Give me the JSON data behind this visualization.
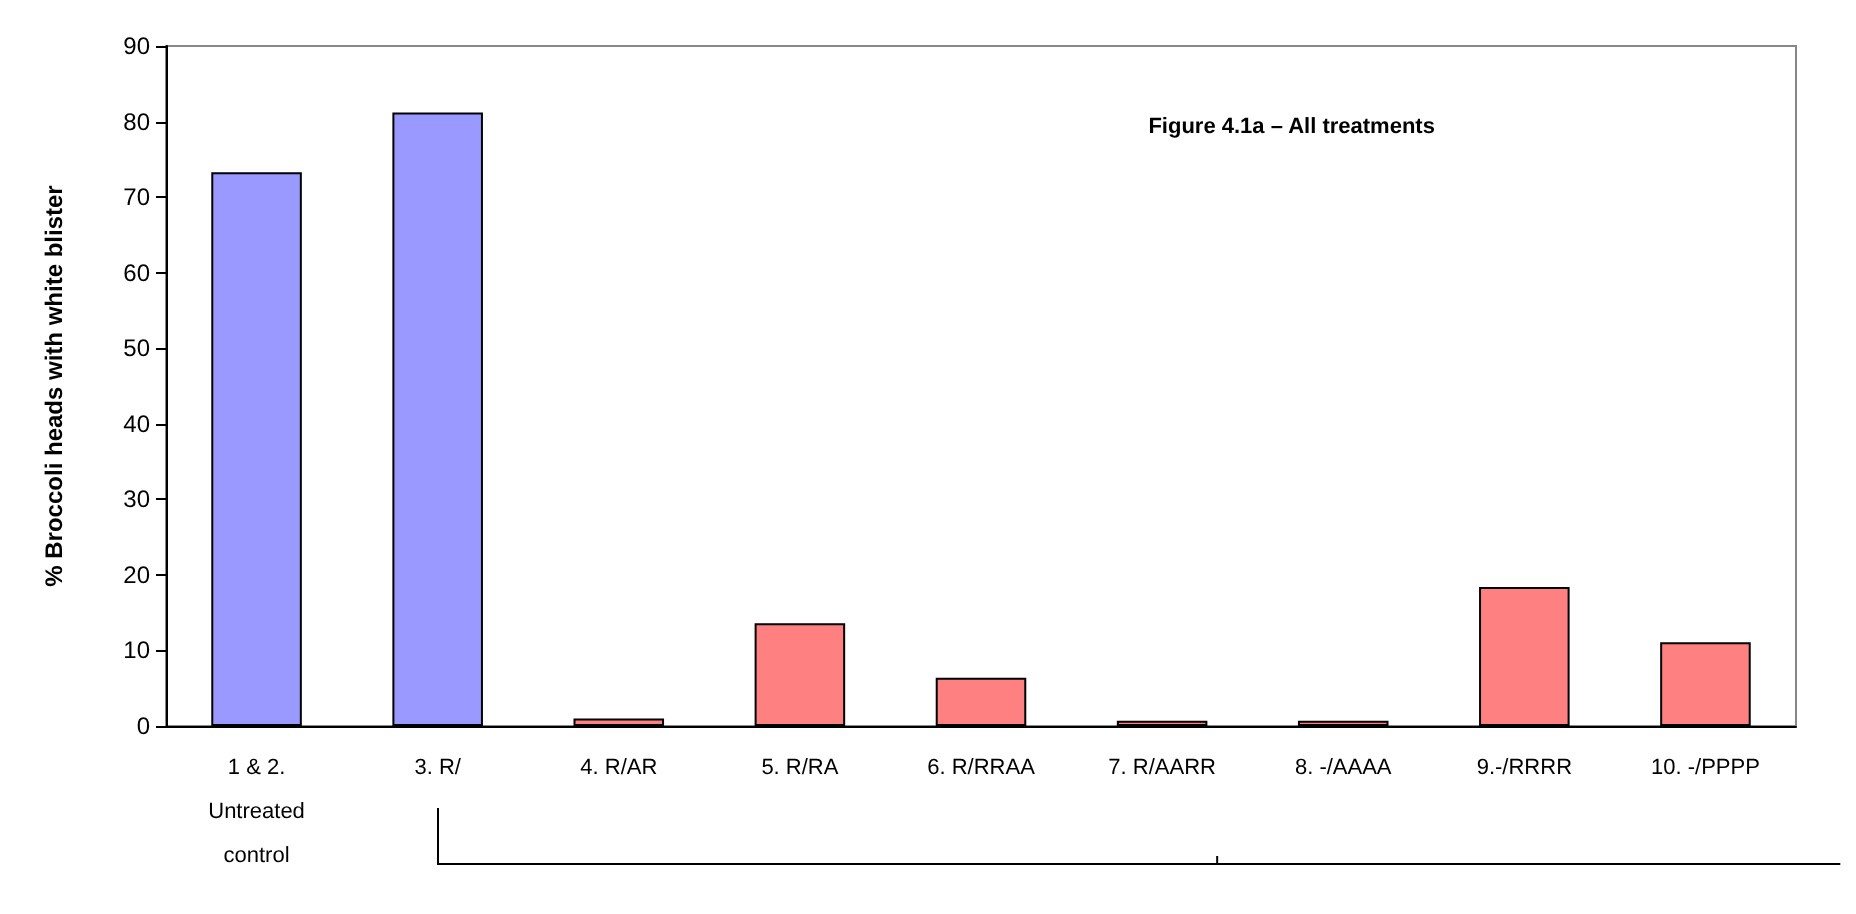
{
  "chart_data": {
    "type": "bar",
    "title": "Figure 4.1a – All treatments",
    "ylabel": "% Broccoli heads with white blister",
    "categories": [
      "1 & 2.\nUntreated\ncontrol",
      "3. R/",
      "4. R/AR",
      "5. R/RA",
      "6. R/RRAA",
      "7. R/AARR",
      "8. -/AAAA",
      "9.-/RRRR",
      "10. -/PPPP"
    ],
    "values": [
      73.3,
      81.2,
      1.0,
      13.6,
      6.4,
      0.7,
      0.7,
      18.4,
      11.1
    ],
    "colors": [
      "#9999ff",
      "#9999ff",
      "#ff8080",
      "#ff8080",
      "#ff8080",
      "#ff8080",
      "#ff8080",
      "#ff8080",
      "#ff8080"
    ],
    "ylim": [
      0,
      90
    ],
    "yticks": [
      0,
      10,
      20,
      30,
      40,
      50,
      60,
      70,
      80,
      90
    ],
    "grid": false
  }
}
